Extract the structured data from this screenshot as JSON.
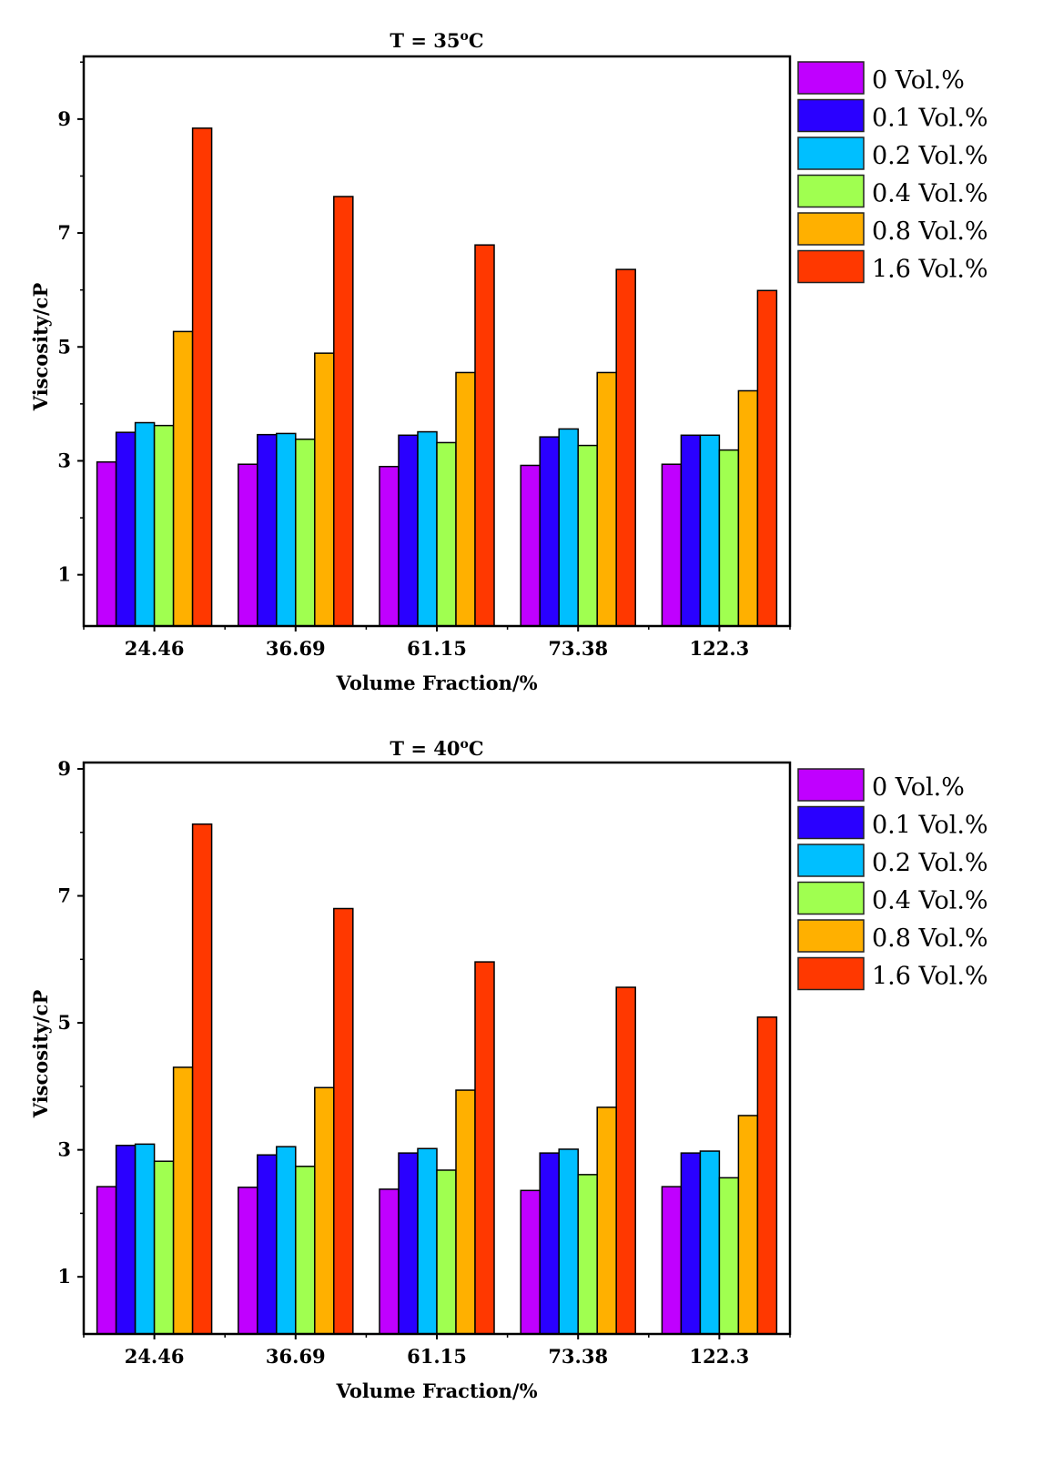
{
  "chart_data": [
    {
      "type": "bar",
      "title_prefix": "T = 35",
      "title_sup": "o",
      "title_suffix": "C",
      "xlabel": "Volume Fraction/%",
      "ylabel": "Viscosity/cP",
      "ylim": [
        0.1,
        10.1
      ],
      "yticks": [
        1,
        3,
        5,
        7,
        9
      ],
      "legend_position": "right",
      "categories": [
        "24.46",
        "36.69",
        "61.15",
        "73.38",
        "122.3"
      ],
      "series": [
        {
          "name": "0 Vol.%",
          "color": "#C000FF",
          "values": [
            2.98,
            2.94,
            2.9,
            2.92,
            2.94
          ]
        },
        {
          "name": "0.1 Vol.%",
          "color": "#2A00FF",
          "values": [
            3.5,
            3.46,
            3.45,
            3.42,
            3.45
          ]
        },
        {
          "name": "0.2 Vol.%",
          "color": "#00BFFF",
          "values": [
            3.67,
            3.48,
            3.51,
            3.56,
            3.45
          ]
        },
        {
          "name": "0.4 Vol.%",
          "color": "#A0FF50",
          "values": [
            3.62,
            3.38,
            3.32,
            3.27,
            3.19
          ]
        },
        {
          "name": "0.8 Vol.%",
          "color": "#FFB000",
          "values": [
            5.27,
            4.89,
            4.55,
            4.55,
            4.23
          ]
        },
        {
          "name": "1.6 Vol.%",
          "color": "#FF3800",
          "values": [
            8.84,
            7.64,
            6.79,
            6.36,
            5.99
          ]
        }
      ]
    },
    {
      "type": "bar",
      "title_prefix": "T = 40",
      "title_sup": "o",
      "title_suffix": "C",
      "xlabel": "Volume Fraction/%",
      "ylabel": "Viscosity/cP",
      "ylim": [
        0.1,
        9.1
      ],
      "yticks": [
        1,
        3,
        5,
        7,
        9
      ],
      "legend_position": "right",
      "categories": [
        "24.46",
        "36.69",
        "61.15",
        "73.38",
        "122.3"
      ],
      "series": [
        {
          "name": "0 Vol.%",
          "color": "#C000FF",
          "values": [
            2.42,
            2.41,
            2.38,
            2.36,
            2.42
          ]
        },
        {
          "name": "0.1 Vol.%",
          "color": "#2A00FF",
          "values": [
            3.07,
            2.92,
            2.95,
            2.95,
            2.95
          ]
        },
        {
          "name": "0.2 Vol.%",
          "color": "#00BFFF",
          "values": [
            3.09,
            3.05,
            3.02,
            3.01,
            2.98
          ]
        },
        {
          "name": "0.4 Vol.%",
          "color": "#A0FF50",
          "values": [
            2.82,
            2.74,
            2.68,
            2.61,
            2.56
          ]
        },
        {
          "name": "0.8 Vol.%",
          "color": "#FFB000",
          "values": [
            4.3,
            3.98,
            3.94,
            3.67,
            3.54
          ]
        },
        {
          "name": "1.6 Vol.%",
          "color": "#FF3800",
          "values": [
            8.13,
            6.8,
            5.96,
            5.56,
            5.09
          ]
        }
      ]
    }
  ]
}
